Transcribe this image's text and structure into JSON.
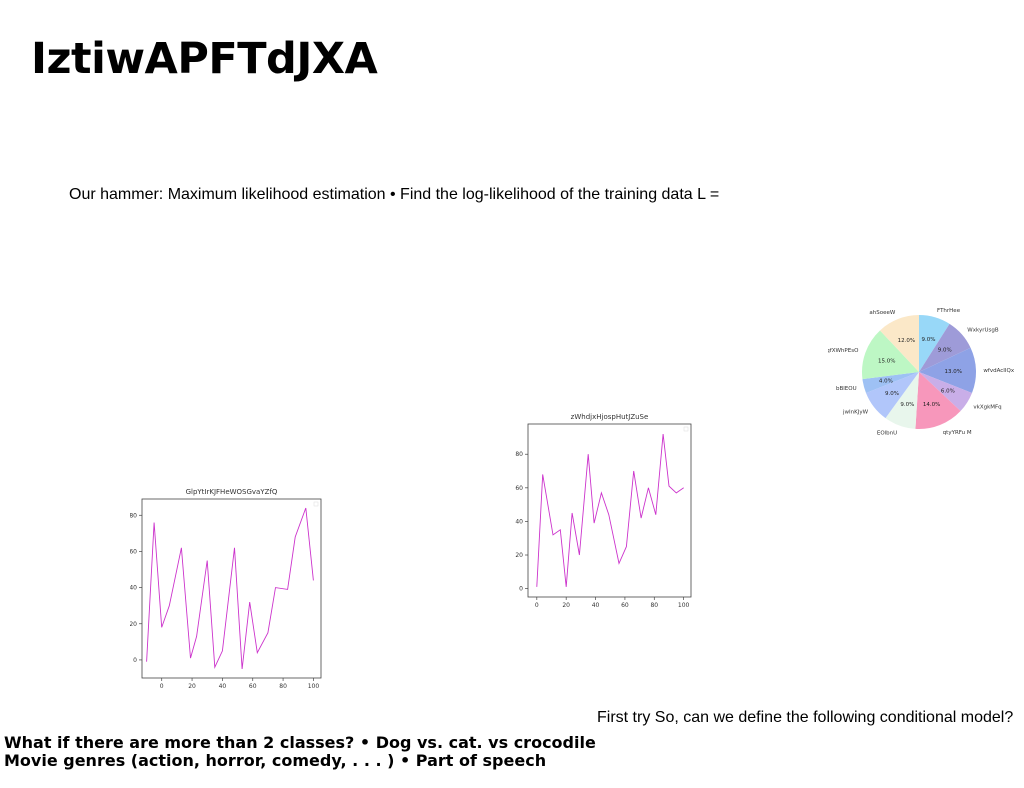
{
  "slide": {
    "title": "IztiwAPFTdJXA",
    "subtitle": "Our hammer: Maximum likelihood estimation • Find the log-likelihood of the training data L =",
    "right_note": "First try So, can we define the following conditional model?",
    "footer_line1": "What if there are more than 2 classes? • Dog vs. cat. vs crocodile",
    "footer_line2": "Movie genres (action, horror, comedy, . . . ) • Part of speech"
  },
  "chart_data": [
    {
      "type": "line",
      "title": "GlpYtIrKJFHeWOSGvaYZfQ",
      "color": "#cc33cc",
      "x": [
        -10,
        -5,
        0,
        5,
        13,
        19,
        23,
        30,
        35,
        40,
        48,
        53,
        58,
        63,
        70,
        75,
        83,
        88,
        95,
        100
      ],
      "y": [
        -1,
        76,
        18,
        30,
        62,
        1,
        13,
        55,
        -4,
        5,
        62,
        -5,
        32,
        4,
        15,
        40,
        39,
        68,
        84,
        44
      ],
      "xticks": [
        0,
        20,
        40,
        60,
        80,
        100
      ],
      "yticks": [
        0,
        20,
        40,
        60,
        80
      ],
      "xlim": [
        -13,
        105
      ],
      "ylim": [
        -10,
        89
      ]
    },
    {
      "type": "line",
      "title": "zWhdjxHjospHutJZuSe",
      "color": "#cc33cc",
      "x": [
        0,
        4,
        11,
        16,
        20,
        24,
        29,
        35,
        39,
        44,
        49,
        56,
        61,
        66,
        71,
        76,
        81,
        86,
        90,
        95,
        100
      ],
      "y": [
        1,
        68,
        32,
        35,
        1,
        45,
        20,
        80,
        39,
        57,
        44,
        15,
        25,
        70,
        42,
        60,
        44,
        92,
        61,
        57,
        60
      ],
      "xticks": [
        0,
        20,
        40,
        60,
        80,
        100
      ],
      "yticks": [
        0,
        20,
        40,
        60,
        80
      ],
      "xlim": [
        -6,
        105
      ],
      "ylim": [
        -5,
        98
      ]
    },
    {
      "type": "pie",
      "labels": [
        "FThrHee",
        "WxkyrUsgB",
        "wfvdAcIIQx",
        "vkXgkMFq",
        "qtyYRFu M",
        "EOlbnU",
        "jwInKJyW",
        "bBlEOU",
        "qfXWhPEsO",
        "ahSoeeW"
      ],
      "values": [
        9.0,
        9.0,
        13.0,
        6.0,
        14.0,
        9.0,
        9.0,
        4.0,
        15.0,
        12.0
      ],
      "pct_labels": [
        "9.0%",
        "9.0%",
        "13.0%",
        "6.0%",
        "14.0%",
        "9.0%",
        "9.0%",
        "4.0%",
        "15.0%",
        "12.0%"
      ],
      "colors": [
        "#98d8f8",
        "#9e9bd8",
        "#8ea2e6",
        "#c9aee8",
        "#f797bb",
        "#e8f6ec",
        "#b1c6fa",
        "#9ec1f4",
        "#bdf7c4",
        "#fbe8c8"
      ]
    }
  ]
}
